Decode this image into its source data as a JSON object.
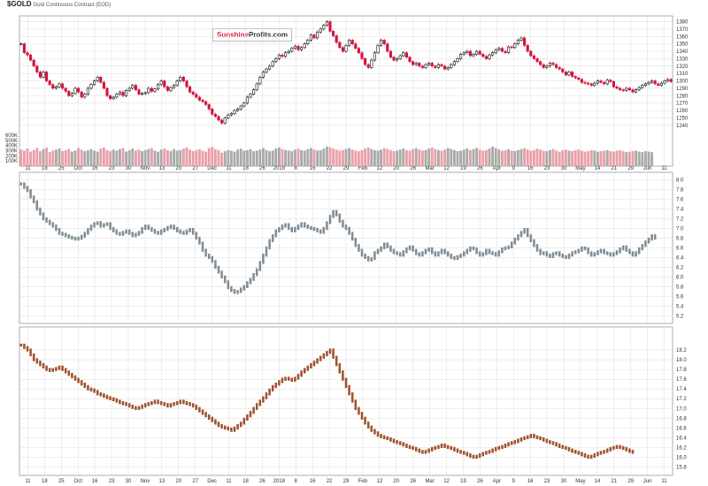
{
  "header": {
    "symbol": "$GOLD",
    "symbol_desc": "Gold Continuous Contract (EOD)",
    "line2": "",
    "line3": ""
  },
  "ohlc_line": "",
  "stockcharts_tag": "",
  "brand": {
    "part1": "Sunshine",
    "part2": "Profits.com"
  },
  "panel_labels": {
    "miners": "",
    "silver": ""
  },
  "colors": {
    "up": "#111111",
    "down": "#d3143a",
    "miners": "#7f8c95",
    "silver": "#a0522d",
    "vol_down": "#e8a0a8",
    "vol_up": "#aaaaaa",
    "grid": "#dcdcdc"
  },
  "chart_data": [
    {
      "type": "candlestick",
      "title": "$GOLD",
      "x_tick_labels": [
        "11",
        "18",
        "25",
        "Oct",
        "16",
        "23",
        "30",
        "Nov",
        "13",
        "20",
        "27",
        "Dec",
        "11",
        "18",
        "26",
        "2018",
        "8",
        "16",
        "22",
        "29",
        "Feb",
        "12",
        "20",
        "26",
        "Mar",
        "12",
        "19",
        "26",
        "Apr",
        "9",
        "16",
        "23",
        "30",
        "May",
        "14",
        "21",
        "29",
        "Jun",
        "11"
      ],
      "y_tick_labels": [
        "1380",
        "1370",
        "1360",
        "1350",
        "1340",
        "1330",
        "1320",
        "1310",
        "1300",
        "1290",
        "1280",
        "1270",
        "1260",
        "1250",
        "1240"
      ],
      "ylim": [
        1235,
        1383
      ],
      "close": [
        1350,
        1338,
        1335,
        1328,
        1320,
        1312,
        1305,
        1312,
        1300,
        1295,
        1290,
        1292,
        1296,
        1290,
        1286,
        1280,
        1283,
        1290,
        1285,
        1278,
        1282,
        1290,
        1295,
        1300,
        1305,
        1298,
        1290,
        1280,
        1276,
        1278,
        1282,
        1285,
        1280,
        1287,
        1290,
        1294,
        1288,
        1282,
        1283,
        1284,
        1290,
        1286,
        1289,
        1295,
        1300,
        1292,
        1287,
        1291,
        1294,
        1300,
        1305,
        1300,
        1292,
        1285,
        1282,
        1278,
        1274,
        1272,
        1268,
        1262,
        1255,
        1252,
        1247,
        1243,
        1250,
        1254,
        1256,
        1260,
        1262,
        1266,
        1270,
        1278,
        1282,
        1288,
        1296,
        1305,
        1312,
        1316,
        1320,
        1326,
        1330,
        1335,
        1333,
        1338,
        1340,
        1344,
        1347,
        1342,
        1345,
        1350,
        1355,
        1362,
        1358,
        1366,
        1370,
        1375,
        1380,
        1367,
        1361,
        1352,
        1345,
        1340,
        1348,
        1355,
        1350,
        1344,
        1338,
        1330,
        1322,
        1318,
        1328,
        1338,
        1348,
        1355,
        1350,
        1340,
        1332,
        1328,
        1330,
        1334,
        1338,
        1332,
        1326,
        1322,
        1324,
        1320,
        1318,
        1322,
        1324,
        1320,
        1318,
        1322,
        1320,
        1316,
        1318,
        1322,
        1326,
        1330,
        1336,
        1338,
        1340,
        1334,
        1336,
        1340,
        1336,
        1333,
        1330,
        1335,
        1338,
        1342,
        1344,
        1340,
        1338,
        1346,
        1345,
        1350,
        1355,
        1358,
        1348,
        1340,
        1334,
        1330,
        1326,
        1322,
        1318,
        1320,
        1324,
        1322,
        1318,
        1316,
        1312,
        1308,
        1312,
        1306,
        1304,
        1302,
        1298,
        1297,
        1296,
        1294,
        1297,
        1300,
        1298,
        1296,
        1301,
        1299,
        1292,
        1290,
        1288,
        1287,
        1290,
        1288,
        1285,
        1288,
        1291,
        1294,
        1296,
        1298,
        1300,
        1296,
        1294,
        1297,
        1300,
        1302,
        1299
      ]
    },
    {
      "type": "bar",
      "title": "Volume",
      "y_tick_labels": [
        "600K",
        "500K",
        "400K",
        "300K",
        "200K",
        "100K"
      ],
      "ylim": [
        0,
        650000
      ],
      "values": [
        320000,
        300000,
        340000,
        280000,
        310000,
        350000,
        290000,
        330000,
        360000,
        270000,
        300000,
        320000,
        340000,
        290000,
        310000,
        330000,
        280000,
        300000,
        350000,
        320000,
        290000,
        310000,
        330000,
        300000,
        280000,
        340000,
        360000,
        310000,
        290000,
        320000,
        300000,
        330000,
        350000,
        280000,
        310000,
        340000,
        300000,
        320000,
        290000,
        310000,
        330000,
        350000,
        300000,
        280000,
        320000,
        340000,
        310000,
        290000,
        330000,
        300000,
        310000,
        340000,
        360000,
        320000,
        290000,
        310000,
        330000,
        300000,
        280000,
        350000,
        370000,
        330000,
        310000,
        260000,
        290000,
        310000,
        300000,
        280000,
        320000,
        340000,
        300000,
        310000,
        330000,
        290000,
        300000,
        320000,
        350000,
        310000,
        290000,
        300000,
        340000,
        360000,
        330000,
        310000,
        300000,
        290000,
        320000,
        340000,
        310000,
        300000,
        330000,
        350000,
        320000,
        300000,
        310000,
        340000,
        380000,
        360000,
        340000,
        320000,
        300000,
        310000,
        330000,
        350000,
        320000,
        300000,
        290000,
        310000,
        340000,
        360000,
        330000,
        310000,
        300000,
        320000,
        350000,
        330000,
        310000,
        290000,
        300000,
        320000,
        340000,
        310000,
        300000,
        330000,
        350000,
        320000,
        300000,
        310000,
        340000,
        360000,
        330000,
        310000,
        300000,
        320000,
        350000,
        330000,
        310000,
        290000,
        300000,
        320000,
        340000,
        310000,
        330000,
        350000,
        320000,
        300000,
        310000,
        340000,
        380000,
        350000,
        320000,
        300000,
        310000,
        330000,
        300000,
        290000,
        310000,
        330000,
        350000,
        320000,
        300000,
        310000,
        340000,
        320000,
        300000,
        290000,
        310000,
        330000,
        300000,
        280000,
        310000,
        320000,
        300000,
        290000,
        310000,
        320000,
        300000,
        280000,
        290000,
        310000,
        300000,
        280000,
        290000,
        300000,
        310000,
        290000,
        280000,
        300000,
        310000,
        290000,
        270000,
        280000,
        290000,
        300000,
        280000,
        270000,
        290000,
        280000,
        270000
      ]
    },
    {
      "type": "bar",
      "title": "",
      "y_tick_labels": [
        "8.0",
        "7.8",
        "7.6",
        "7.4",
        "7.2",
        "7.0",
        "6.8",
        "6.6",
        "6.4",
        "6.2",
        "6.0",
        "5.8",
        "5.6",
        "5.4",
        "5.2"
      ],
      "ylim": [
        5.15,
        8.05
      ],
      "close": [
        7.92,
        7.85,
        7.78,
        7.65,
        7.55,
        7.4,
        7.3,
        7.2,
        7.15,
        7.1,
        7.05,
        6.98,
        6.9,
        6.88,
        6.85,
        6.82,
        6.8,
        6.78,
        6.8,
        6.84,
        6.9,
        6.98,
        7.05,
        7.1,
        7.12,
        7.05,
        7.08,
        7.1,
        7.0,
        6.95,
        6.9,
        6.88,
        6.92,
        6.95,
        6.9,
        6.85,
        6.88,
        6.92,
        7.0,
        7.05,
        7.0,
        6.96,
        6.92,
        6.9,
        6.95,
        6.98,
        7.02,
        7.05,
        7.0,
        6.95,
        6.92,
        6.9,
        6.95,
        6.98,
        6.9,
        6.8,
        6.7,
        6.55,
        6.45,
        6.4,
        6.32,
        6.2,
        6.1,
        6.0,
        5.9,
        5.78,
        5.72,
        5.68,
        5.7,
        5.75,
        5.8,
        5.88,
        5.95,
        6.05,
        6.15,
        6.3,
        6.45,
        6.6,
        6.75,
        6.85,
        6.95,
        7.0,
        7.05,
        7.08,
        7.0,
        6.95,
        7.0,
        7.05,
        7.1,
        7.05,
        7.02,
        7.0,
        6.98,
        6.95,
        6.92,
        7.0,
        7.12,
        7.25,
        7.35,
        7.28,
        7.15,
        7.05,
        7.0,
        6.9,
        6.78,
        6.65,
        6.55,
        6.45,
        6.4,
        6.35,
        6.38,
        6.5,
        6.55,
        6.6,
        6.68,
        6.62,
        6.55,
        6.5,
        6.48,
        6.45,
        6.52,
        6.58,
        6.62,
        6.55,
        6.48,
        6.45,
        6.5,
        6.55,
        6.58,
        6.5,
        6.45,
        6.5,
        6.55,
        6.5,
        6.45,
        6.4,
        6.38,
        6.42,
        6.45,
        6.5,
        6.55,
        6.6,
        6.58,
        6.5,
        6.45,
        6.48,
        6.55,
        6.5,
        6.48,
        6.45,
        6.52,
        6.58,
        6.6,
        6.62,
        6.7,
        6.78,
        6.85,
        6.92,
        6.98,
        6.85,
        6.75,
        6.65,
        6.55,
        6.48,
        6.5,
        6.45,
        6.42,
        6.48,
        6.5,
        6.45,
        6.42,
        6.4,
        6.45,
        6.5,
        6.52,
        6.55,
        6.6,
        6.58,
        6.5,
        6.45,
        6.48,
        6.52,
        6.55,
        6.5,
        6.48,
        6.45,
        6.48,
        6.52,
        6.58,
        6.62,
        6.55,
        6.5,
        6.45,
        6.5,
        6.58,
        6.65,
        6.72,
        6.78,
        6.85,
        6.8
      ]
    },
    {
      "type": "bar",
      "title": "",
      "y_tick_labels": [
        "18.2",
        "18.0",
        "17.8",
        "17.6",
        "17.4",
        "17.2",
        "17.0",
        "16.8",
        "16.6",
        "16.4",
        "16.2",
        "16.0",
        "15.8"
      ],
      "ylim": [
        15.7,
        18.6
      ],
      "close": [
        18.3,
        18.25,
        18.2,
        18.1,
        18.0,
        17.95,
        17.9,
        17.85,
        17.8,
        17.78,
        17.8,
        17.82,
        17.85,
        17.8,
        17.75,
        17.7,
        17.65,
        17.6,
        17.55,
        17.5,
        17.45,
        17.4,
        17.38,
        17.35,
        17.3,
        17.28,
        17.25,
        17.22,
        17.2,
        17.18,
        17.15,
        17.12,
        17.1,
        17.08,
        17.05,
        17.02,
        17.0,
        17.02,
        17.05,
        17.08,
        17.1,
        17.12,
        17.15,
        17.12,
        17.1,
        17.08,
        17.05,
        17.08,
        17.1,
        17.12,
        17.15,
        17.12,
        17.1,
        17.08,
        17.05,
        17.0,
        16.95,
        16.9,
        16.85,
        16.8,
        16.75,
        16.7,
        16.65,
        16.62,
        16.6,
        16.58,
        16.55,
        16.6,
        16.65,
        16.7,
        16.78,
        16.85,
        16.92,
        17.0,
        17.08,
        17.15,
        17.22,
        17.3,
        17.38,
        17.45,
        17.5,
        17.55,
        17.6,
        17.62,
        17.6,
        17.58,
        17.62,
        17.68,
        17.75,
        17.8,
        17.85,
        17.9,
        17.95,
        18.0,
        18.05,
        18.1,
        18.15,
        18.2,
        18.05,
        17.9,
        17.75,
        17.6,
        17.45,
        17.3,
        17.15,
        17.0,
        16.9,
        16.8,
        16.7,
        16.62,
        16.55,
        16.5,
        16.45,
        16.42,
        16.4,
        16.38,
        16.35,
        16.32,
        16.3,
        16.28,
        16.25,
        16.22,
        16.2,
        16.18,
        16.15,
        16.12,
        16.1,
        16.12,
        16.15,
        16.18,
        16.2,
        16.22,
        16.25,
        16.22,
        16.2,
        16.18,
        16.15,
        16.12,
        16.1,
        16.08,
        16.05,
        16.02,
        16.0,
        16.02,
        16.05,
        16.08,
        16.1,
        16.12,
        16.15,
        16.18,
        16.2,
        16.22,
        16.25,
        16.28,
        16.3,
        16.32,
        16.35,
        16.38,
        16.4,
        16.42,
        16.45,
        16.42,
        16.4,
        16.38,
        16.35,
        16.32,
        16.3,
        16.28,
        16.25,
        16.22,
        16.2,
        16.18,
        16.15,
        16.12,
        16.1,
        16.08,
        16.05,
        16.02,
        16.0,
        16.02,
        16.05,
        16.08,
        16.1,
        16.12,
        16.15,
        16.18,
        16.2,
        16.22,
        16.2,
        16.18,
        16.15,
        16.12,
        16.1
      ]
    }
  ]
}
